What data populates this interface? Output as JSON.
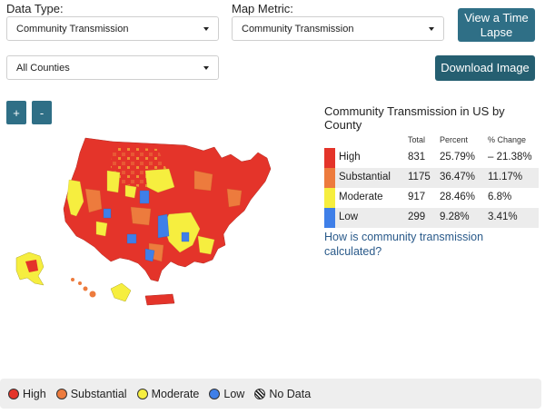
{
  "controls": {
    "data_type_label": "Data Type:",
    "data_type_value": "Community Transmission",
    "map_metric_label": "Map Metric:",
    "map_metric_value": "Community Transmission",
    "county_value": "All Counties",
    "time_lapse_line1": "View a Time",
    "time_lapse_line2": "Lapse",
    "download_label": "Download Image",
    "zoom_in": "+",
    "zoom_out": "-"
  },
  "stats": {
    "title": "Community Transmission in US by County",
    "headers": {
      "total": "Total",
      "percent": "Percent",
      "change": "% Change"
    },
    "rows": [
      {
        "level": "High",
        "total": "831",
        "percent": "25.79%",
        "change": "– 21.38%",
        "color": "#e4342a"
      },
      {
        "level": "Substantial",
        "total": "1175",
        "percent": "36.47%",
        "change": "11.17%",
        "color": "#ed7b3d"
      },
      {
        "level": "Moderate",
        "total": "917",
        "percent": "28.46%",
        "change": "6.8%",
        "color": "#f6ee3f"
      },
      {
        "level": "Low",
        "total": "299",
        "percent": "9.28%",
        "change": "3.41%",
        "color": "#3f7fe8"
      }
    ]
  },
  "link_text": "How is community transmission calculated?",
  "legend": [
    {
      "label": "High",
      "color": "#e4342a"
    },
    {
      "label": "Substantial",
      "color": "#ed7b3d"
    },
    {
      "label": "Moderate",
      "color": "#f6ee3f"
    },
    {
      "label": "Low",
      "color": "#3f7fe8"
    },
    {
      "label": "No Data",
      "color": "hatch"
    }
  ]
}
